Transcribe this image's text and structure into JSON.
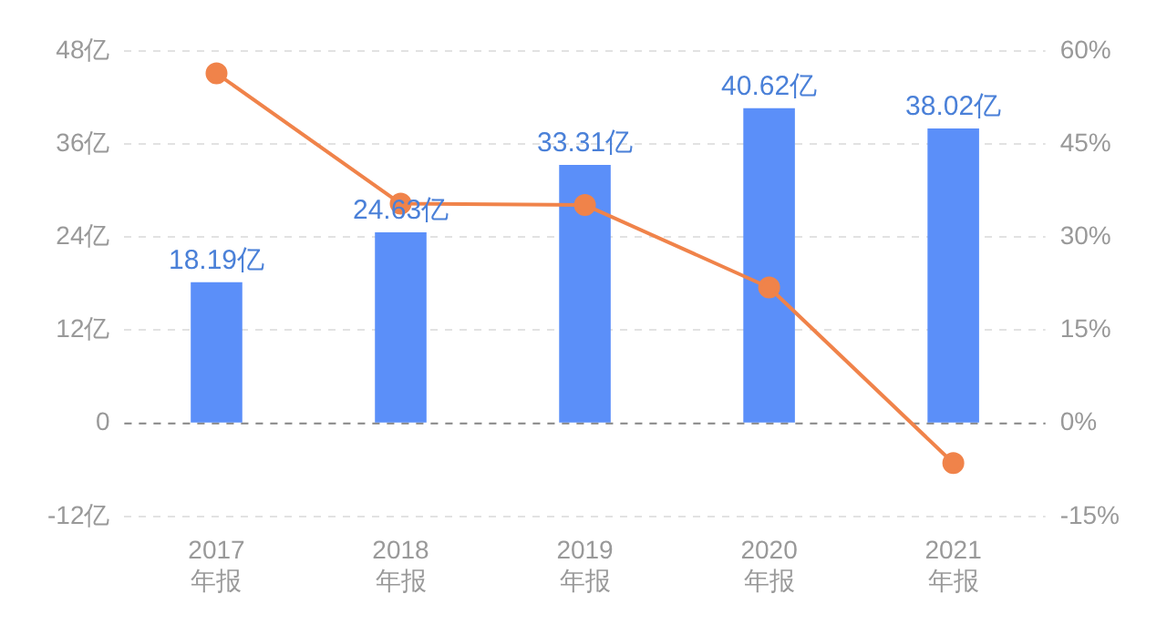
{
  "chart_data": {
    "type": "bar",
    "categories": [
      "2017\n年报",
      "2018\n年报",
      "2019\n年报",
      "2020\n年报",
      "2021\n年报"
    ],
    "series": [
      {
        "color": "#5b8ff9",
        "values": [
          18.19,
          24.63,
          33.31,
          40.62,
          38.02
        ],
        "value_labels": [
          "18.19亿",
          "24.63亿",
          "33.31亿",
          "40.62亿",
          "38.02亿"
        ]
      },
      {
        "type": "line",
        "axis": "y2",
        "color": "#f0834a",
        "values": [
          56.4,
          35.4,
          35.2,
          21.9,
          -6.4
        ],
        "marker": "circle"
      }
    ],
    "ylim": [
      -12,
      48
    ],
    "yticks": [
      {
        "value": -12,
        "label": "-12亿"
      },
      0,
      {
        "value": 12,
        "label": "12亿"
      },
      {
        "value": 24,
        "label": "24亿"
      },
      {
        "value": 36,
        "label": "36亿"
      },
      {
        "value": 48,
        "label": "48亿"
      }
    ],
    "y2lim": [
      -15,
      60
    ],
    "y2ticks": [
      {
        "value": -15,
        "label": "-15%"
      },
      {
        "value": 0,
        "label": "0%"
      },
      {
        "value": 15,
        "label": "15%"
      },
      {
        "value": 30,
        "label": "30%"
      },
      {
        "value": 45,
        "label": "45%"
      },
      {
        "value": 60,
        "label": "60%"
      }
    ],
    "ref_lines": [
      {
        "axis": "y",
        "value": 0,
        "color": "#888888",
        "line_style": "dashed"
      }
    ],
    "grid": "y",
    "legend": false
  }
}
